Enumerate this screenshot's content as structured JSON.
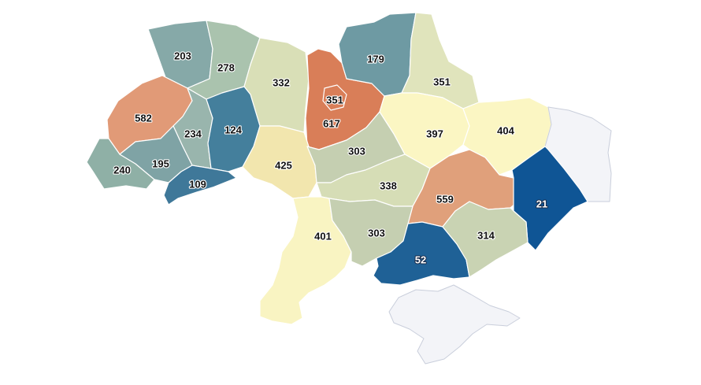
{
  "map": {
    "legend": "",
    "palette": {
      "nodata": "#f3f4f8",
      "c1": "#0f5595",
      "c2": "#286a9a",
      "c3": "#3f7e9c",
      "c4": "#6e9aa3",
      "c5": "#8fb0ad",
      "c6": "#a9c0b0",
      "c7": "#c5d1b5",
      "c8": "#d9dfb7",
      "c9": "#e8e9bd",
      "c10": "#f1e7ae",
      "c11": "#f7f3c1",
      "c12": "#fbf6c6",
      "c13": "#e0a07b",
      "c14": "#e19a77",
      "c15": "#d97e58"
    },
    "regions": [
      {
        "id": "volyn",
        "value": "203",
        "color": "#86a9a8"
      },
      {
        "id": "rivne",
        "value": "278",
        "color": "#aac3ae"
      },
      {
        "id": "zhytomyr",
        "value": "332",
        "color": "#d9dfb7"
      },
      {
        "id": "kyiv-oblast",
        "value": "351",
        "color": "#d97e58"
      },
      {
        "id": "kyiv-city",
        "value": "617",
        "color": "#d97e58"
      },
      {
        "id": "chernihiv",
        "value": "179",
        "color": "#6e9aa3"
      },
      {
        "id": "sumy",
        "value": "351",
        "color": "#e0e4bc"
      },
      {
        "id": "lviv",
        "value": "582",
        "color": "#e19a77"
      },
      {
        "id": "ternopil",
        "value": "234",
        "color": "#99b5ad"
      },
      {
        "id": "khmelnytskyi",
        "value": "124",
        "color": "#447f9c"
      },
      {
        "id": "zakarpattia",
        "value": "240",
        "color": "#8fb0a6"
      },
      {
        "id": "ivano-frankivsk",
        "value": "195",
        "color": "#7fa3a5"
      },
      {
        "id": "chernivtsi",
        "value": "109",
        "color": "#3f7899"
      },
      {
        "id": "vinnytsia",
        "value": "425",
        "color": "#f2e6ae"
      },
      {
        "id": "cherkasy",
        "value": "303",
        "color": "#c5cfb1"
      },
      {
        "id": "poltava",
        "value": "397",
        "color": "#fbf6c3"
      },
      {
        "id": "kharkiv",
        "value": "404",
        "color": "#fbf6c3"
      },
      {
        "id": "kirovohrad",
        "value": "338",
        "color": "#d6ddb6"
      },
      {
        "id": "dnipro",
        "value": "559",
        "color": "#e0a07b"
      },
      {
        "id": "luhansk",
        "value": "",
        "color": "#f3f4f8"
      },
      {
        "id": "donetsk",
        "value": "21",
        "color": "#0f5595"
      },
      {
        "id": "odesa",
        "value": "401",
        "color": "#f9f4c2"
      },
      {
        "id": "mykolaiv",
        "value": "303",
        "color": "#c5cfb1"
      },
      {
        "id": "kherson",
        "value": "52",
        "color": "#1f6196"
      },
      {
        "id": "zaporizhzhia",
        "value": "314",
        "color": "#c9d3b3"
      },
      {
        "id": "crimea",
        "value": "",
        "color": "#f3f4f8"
      }
    ]
  }
}
